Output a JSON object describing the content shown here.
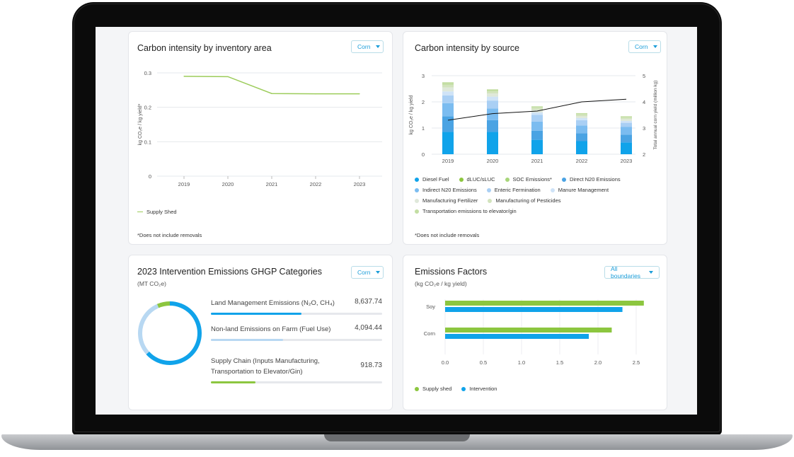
{
  "colors": {
    "blue": "#10a3ea",
    "green": "#8cc63f",
    "light_blue": "#b8d8f2",
    "line_green": "#9ccc5a"
  },
  "card1": {
    "title": "Carbon intensity by inventory area",
    "dropdown": "Corn",
    "note": "*Does not include removals",
    "chart_data": {
      "type": "line",
      "ylabel": "kg CO₂e / kg yield*",
      "ylim": [
        0,
        0.3
      ],
      "yticks": [
        "0",
        "0.1",
        "0.2",
        "0.3"
      ],
      "x": [
        "2019",
        "2020",
        "2021",
        "2022",
        "2023"
      ],
      "series": [
        {
          "name": "Supply Shed",
          "values": [
            0.29,
            0.289,
            0.24,
            0.239,
            0.239
          ],
          "color": "#9ccc5a"
        }
      ]
    }
  },
  "card2": {
    "title": "Carbon intensity by source",
    "dropdown": "Corn",
    "note": "*Does not include removals",
    "chart_data": {
      "type": "bar",
      "stacked": true,
      "ylabel": "kg CO₂e / kg yield",
      "y2label": "Total annual corn yield (million kg)",
      "ylim": [
        0,
        3
      ],
      "yticks": [
        "0",
        "1",
        "2",
        "3"
      ],
      "y2lim": [
        2,
        5
      ],
      "y2ticks": [
        "2",
        "3",
        "4",
        "5"
      ],
      "categories": [
        "2019",
        "2020",
        "2021",
        "2022",
        "2023"
      ],
      "series": [
        {
          "name": "Diesel Fuel",
          "color": "#10a3ea",
          "values": [
            0.85,
            0.85,
            0.55,
            0.5,
            0.45
          ]
        },
        {
          "name": "dLUC/sLUC",
          "color": "#8cc63f",
          "values": [
            0,
            0,
            0,
            0,
            0
          ]
        },
        {
          "name": "SOC Emissions*",
          "color": "#a8d67a",
          "values": [
            0,
            0,
            0,
            0,
            0
          ]
        },
        {
          "name": "Direct N20 Emissions",
          "color": "#4aa3e3",
          "values": [
            0.6,
            0.45,
            0.35,
            0.3,
            0.3
          ]
        },
        {
          "name": "Indirect N20 Emissions",
          "color": "#7bbcf0",
          "values": [
            0.5,
            0.45,
            0.35,
            0.3,
            0.3
          ]
        },
        {
          "name": "Enteric Fermination",
          "color": "#a9cff4",
          "values": [
            0.3,
            0.3,
            0.25,
            0.2,
            0.15
          ]
        },
        {
          "name": "Manure Management",
          "color": "#cfe3f7",
          "values": [
            0.15,
            0.15,
            0.1,
            0.08,
            0.07
          ]
        },
        {
          "name": "Manufacturing Fertilizer",
          "color": "#dfe8da",
          "values": [
            0.15,
            0.12,
            0.1,
            0.07,
            0.07
          ]
        },
        {
          "name": "Manufacturing of Pesticides",
          "color": "#d2e3bd",
          "values": [
            0.1,
            0.08,
            0.08,
            0.07,
            0.06
          ]
        },
        {
          "name": "Transportation emissions to elevator/gin",
          "color": "#c3dea3",
          "values": [
            0.1,
            0.08,
            0.05,
            0.05,
            0.05
          ]
        }
      ],
      "line": {
        "axis": "y2",
        "values": [
          3.3,
          3.55,
          3.65,
          4.0,
          4.1
        ],
        "color": "#111111"
      }
    }
  },
  "card3": {
    "title": "2023 Intervention Emissions GHGP Categories",
    "subtitle": "(MT CO₂e)",
    "dropdown": "Corn",
    "donut": [
      {
        "value": 8637.74,
        "color": "#10a3ea"
      },
      {
        "value": 4094.44,
        "color": "#b8d8f2"
      },
      {
        "value": 918.73,
        "color": "#8cc63f"
      }
    ],
    "metrics": [
      {
        "label": "Land Management Emissions (N₂O, CH₄)",
        "value": "8,637.74",
        "fraction": 0.53,
        "color": "#10a3ea"
      },
      {
        "label": "Non-land Emissions on Farm (Fuel Use)",
        "value": "4,094.44",
        "fraction": 0.42,
        "color": "#b8d8f2"
      },
      {
        "label": "Supply Chain (Inputs Manufacturing, Transportation to Elevator/Gin)",
        "value": "918.73",
        "fraction": 0.26,
        "color": "#8cc63f"
      }
    ]
  },
  "card4": {
    "title": "Emissions Factors",
    "subtitle": "(kg CO₂e / kg yield)",
    "dropdown": "All boundaries",
    "chart_data": {
      "type": "bar",
      "orientation": "horizontal",
      "categories": [
        "Soy",
        "Corn"
      ],
      "xlim": [
        0,
        2.75
      ],
      "xticks": [
        "0.0",
        "0.5",
        "1.0",
        "1.5",
        "2.0",
        "2.5"
      ],
      "series": [
        {
          "name": "Supply shed",
          "color": "#8cc63f",
          "values": [
            2.6,
            2.18
          ]
        },
        {
          "name": "Intervention",
          "color": "#10a3ea",
          "values": [
            2.32,
            1.88
          ]
        }
      ]
    }
  }
}
